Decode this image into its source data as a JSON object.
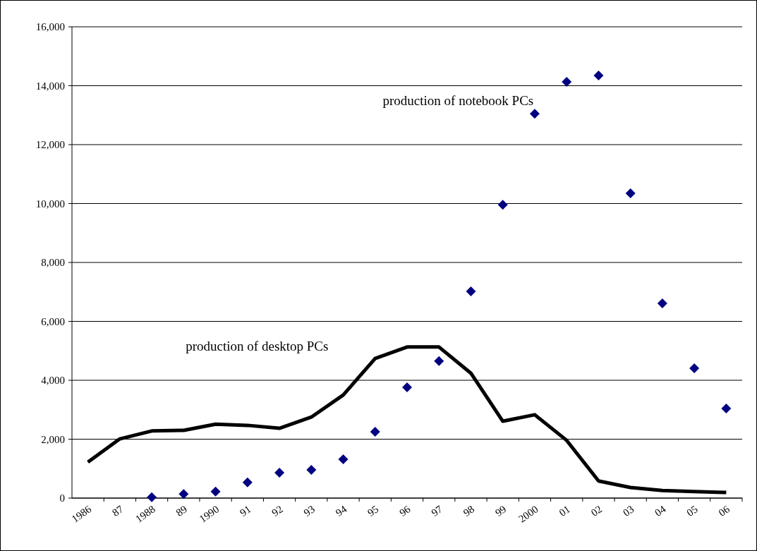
{
  "chart_data": {
    "type": "line",
    "categories": [
      "1986",
      "87",
      "1988",
      "89",
      "1990",
      "91",
      "92",
      "93",
      "94",
      "95",
      "96",
      "97",
      "98",
      "99",
      "2000",
      "01",
      "02",
      "03",
      "04",
      "05",
      "06"
    ],
    "series": [
      {
        "name": "production of desktop PCs",
        "color": "#000000",
        "marker": "none",
        "values": [
          1220,
          2010,
          2280,
          2300,
          2510,
          2470,
          2370,
          2750,
          3500,
          4740,
          5130,
          5130,
          4240,
          2610,
          2830,
          1960,
          580,
          360,
          260,
          220,
          190
        ]
      },
      {
        "name": "production of notebook PCs",
        "type": "scatter",
        "color": "#000080",
        "marker": "diamond",
        "values": [
          null,
          null,
          30,
          140,
          220,
          530,
          860,
          960,
          1320,
          2250,
          3760,
          4650,
          7020,
          9960,
          13050,
          14130,
          14350,
          10350,
          6610,
          4410,
          3040
        ]
      }
    ],
    "ylim": [
      0,
      16000
    ],
    "yticks": [
      {
        "value": 0,
        "label": "0"
      },
      {
        "value": 2000,
        "label": "2,000"
      },
      {
        "value": 4000,
        "label": "4,000"
      },
      {
        "value": 6000,
        "label": "6,000"
      },
      {
        "value": 8000,
        "label": "8,000"
      },
      {
        "value": 10000,
        "label": "10,000"
      },
      {
        "value": 12000,
        "label": "12,000"
      },
      {
        "value": 14000,
        "label": "14,000"
      },
      {
        "value": 16000,
        "label": "16,000"
      }
    ],
    "grid": "y"
  }
}
